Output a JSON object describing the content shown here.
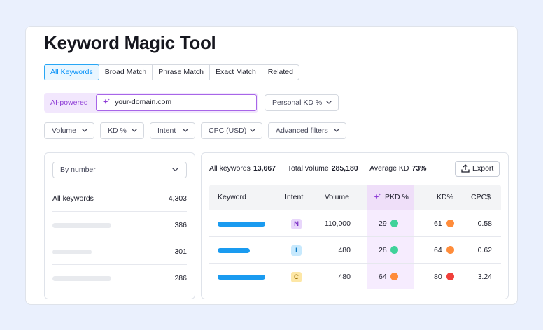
{
  "page": {
    "title": "Keyword Magic Tool"
  },
  "tabs": [
    {
      "label": "All Keywords",
      "active": true
    },
    {
      "label": "Broad Match"
    },
    {
      "label": "Phrase Match"
    },
    {
      "label": "Exact Match"
    },
    {
      "label": "Related"
    }
  ],
  "ai": {
    "label": "AI-powered",
    "input_value": "your-domain.com"
  },
  "personal_kd": {
    "label": "Personal KD %"
  },
  "filters": [
    {
      "label": "Volume"
    },
    {
      "label": "KD %"
    },
    {
      "label": "Intent"
    },
    {
      "label": "CPC (USD)"
    },
    {
      "label": "Advanced filters"
    }
  ],
  "left_panel": {
    "sort_label": "By number",
    "rows": [
      {
        "label": "All keywords",
        "count": "4,303"
      },
      {
        "label": "",
        "count": "386"
      },
      {
        "label": "",
        "count": "301"
      },
      {
        "label": "",
        "count": "286"
      }
    ]
  },
  "summary": {
    "all_keywords_label": "All keywords",
    "all_keywords_value": "13,667",
    "total_volume_label": "Total volume",
    "total_volume_value": "285,180",
    "average_kd_label": "Average KD",
    "average_kd_value": "73%"
  },
  "export_label": "Export",
  "table": {
    "headers": {
      "keyword": "Keyword",
      "intent": "Intent",
      "volume": "Volume",
      "pkd": "PKD %",
      "kd": "KD%",
      "cpc": "CPC$"
    },
    "rows": [
      {
        "intent": "N",
        "intent_bg": "#e8d6fb",
        "intent_color": "#7a2fc4",
        "volume": "110,000",
        "pkd": "29",
        "pkd_color": "#3fd29a",
        "kd": "61",
        "kd_color": "#ff8c3a",
        "cpc": "0.58",
        "keyword_bar_fraction": 1.0
      },
      {
        "intent": "I",
        "intent_bg": "#c7e9fd",
        "intent_color": "#0c79c4",
        "volume": "480",
        "pkd": "28",
        "pkd_color": "#3fd29a",
        "kd": "64",
        "kd_color": "#ff8c3a",
        "cpc": "0.62",
        "keyword_bar_fraction": 0.68
      },
      {
        "intent": "C",
        "intent_bg": "#fde7a6",
        "intent_color": "#9a6c00",
        "volume": "480",
        "pkd": "64",
        "pkd_color": "#ff8c3a",
        "kd": "80",
        "kd_color": "#f0403b",
        "cpc": "3.24",
        "keyword_bar_fraction": 1.0
      }
    ]
  },
  "icons": {
    "spark": "sparkle-icon",
    "chevron": "chevron-down-icon",
    "export": "export-icon"
  }
}
